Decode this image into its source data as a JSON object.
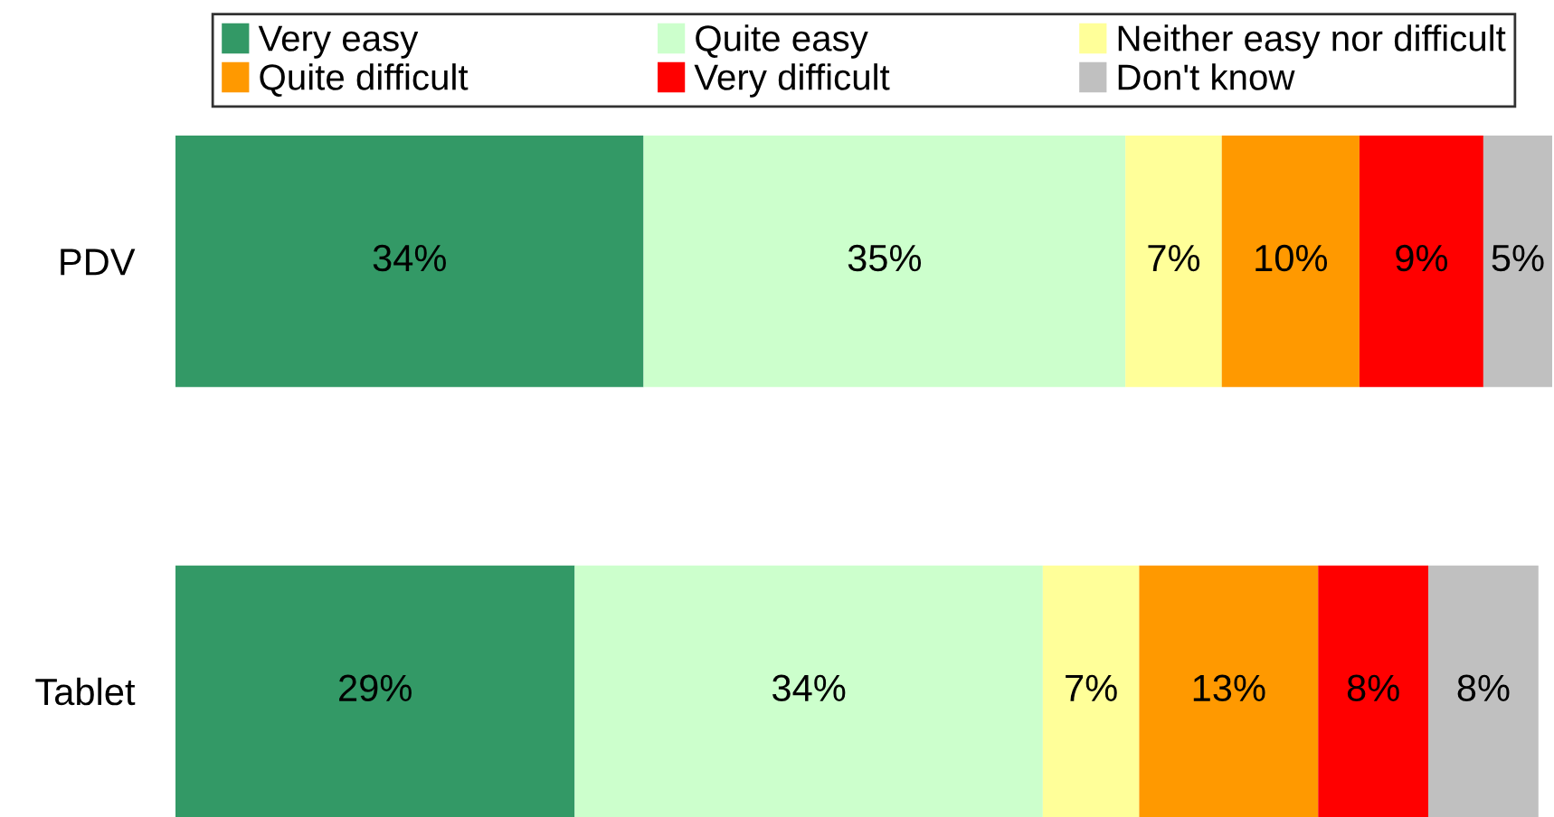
{
  "chart_data": {
    "type": "bar",
    "orientation": "horizontal",
    "stacked": true,
    "legend": "top",
    "tick_labels": "y",
    "categories": [
      "PDV",
      "Tablet"
    ],
    "series": [
      {
        "name": "Very easy",
        "color": "#339966",
        "values": [
          34,
          29
        ],
        "value_labels": [
          "34%",
          "29%"
        ]
      },
      {
        "name": "Quite easy",
        "color": "#ccffcc",
        "values": [
          35,
          34
        ],
        "value_labels": [
          "35%",
          "34%"
        ]
      },
      {
        "name": "Neither easy nor difficult",
        "color": "#ffff99",
        "values": [
          7,
          7
        ],
        "value_labels": [
          "7%",
          "7%"
        ]
      },
      {
        "name": "Quite difficult",
        "color": "#ff9900",
        "values": [
          10,
          13
        ],
        "value_labels": [
          "10%",
          "13%"
        ]
      },
      {
        "name": "Very difficult",
        "color": "#ff0000",
        "values": [
          9,
          8
        ],
        "value_labels": [
          "9%",
          "8%"
        ]
      },
      {
        "name": "Don't know",
        "color": "#c0c0c0",
        "values": [
          5,
          8
        ],
        "value_labels": [
          "5%",
          "8%"
        ]
      }
    ]
  }
}
